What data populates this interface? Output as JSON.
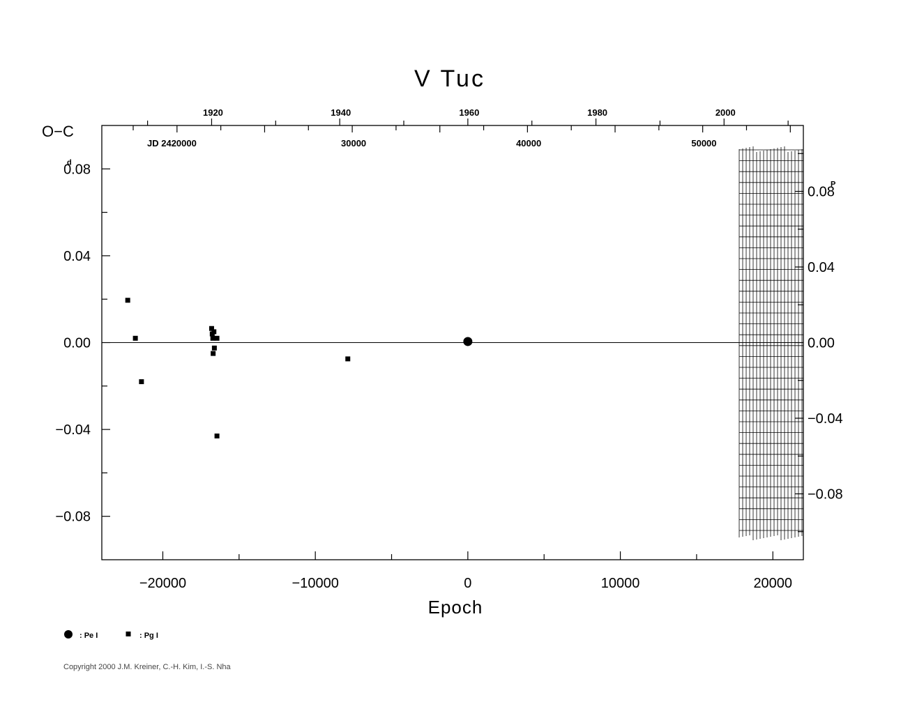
{
  "chart_data": {
    "type": "scatter",
    "title": "V  Tuc",
    "ylabel": "O−C",
    "xlabel": "Epoch",
    "xlim": [
      -24000,
      22000
    ],
    "ylim": [
      -0.1,
      0.1
    ],
    "x_ticks": [
      {
        "value": -20000,
        "label": "−20000"
      },
      {
        "value": -10000,
        "label": "−10000"
      },
      {
        "value": 0,
        "label": "0"
      },
      {
        "value": 10000,
        "label": "10000"
      },
      {
        "value": 20000,
        "label": "20000"
      }
    ],
    "y_ticks_left": [
      {
        "value": 0.08,
        "label": "0.08",
        "superscript": "d"
      },
      {
        "value": 0.04,
        "label": "0.04"
      },
      {
        "value": 0.0,
        "label": "0.00"
      },
      {
        "value": -0.04,
        "label": "−0.04"
      },
      {
        "value": -0.08,
        "label": "−0.08"
      }
    ],
    "right_axis": {
      "period_days": 0.8707,
      "ticks": [
        {
          "value": 0.08,
          "label": "0.08",
          "superscript": "P"
        },
        {
          "value": 0.04,
          "label": "0.04"
        },
        {
          "value": 0.0,
          "label": "0.00"
        },
        {
          "value": -0.04,
          "label": "−0.04"
        },
        {
          "value": -0.08,
          "label": "−0.08"
        }
      ]
    },
    "top_year_axis": {
      "ticks": [
        {
          "value": -16800,
          "label": "1920"
        },
        {
          "value": -8420,
          "label": "1940"
        },
        {
          "value": 0,
          "label": "1960"
        },
        {
          "value": 8400,
          "label": "1980"
        },
        {
          "value": 16800,
          "label": "2000"
        }
      ]
    },
    "top_jd_axis": {
      "prefix": "JD  2420000",
      "ticks": [
        {
          "value": -7580,
          "label": "30000"
        },
        {
          "value": 3900,
          "label": "40000"
        },
        {
          "value": 15390,
          "label": "50000"
        }
      ]
    },
    "series": [
      {
        "name": "Pe I",
        "marker": "circle",
        "points": [
          [
            0,
            0.0005
          ]
        ]
      },
      {
        "name": "Pg I",
        "marker": "square",
        "points": [
          [
            -22300,
            0.0195
          ],
          [
            -21800,
            0.002
          ],
          [
            -21400,
            -0.018
          ],
          [
            -16800,
            0.0065
          ],
          [
            -16760,
            0.004
          ],
          [
            -16720,
            0.002
          ],
          [
            -16650,
            0.005
          ],
          [
            -16620,
            -0.0025
          ],
          [
            -16700,
            -0.005
          ],
          [
            -16450,
            0.002
          ],
          [
            -16450,
            -0.043
          ],
          [
            -7870,
            -0.0075
          ]
        ]
      }
    ],
    "grid": false,
    "zero_line": true,
    "legend_position": "bottom-left"
  },
  "legend": [
    {
      "symbol": "circle",
      "label": ": Pe  I"
    },
    {
      "symbol": "square",
      "label": ": Pg  I"
    }
  ],
  "copyright": "Copyright 2000 J.M. Kreiner, C.-H. Kim, I.-S. Nha"
}
